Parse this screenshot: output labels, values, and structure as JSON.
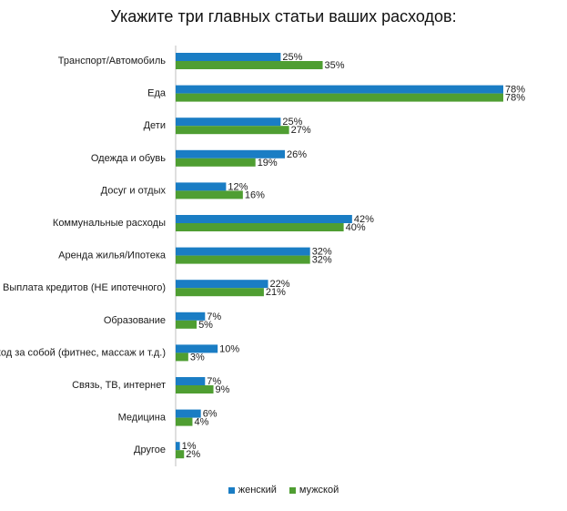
{
  "chart_data": {
    "type": "bar",
    "orientation": "horizontal",
    "title": "Укажите три главных статьи ваших расходов:",
    "categories": [
      "Транспорт/Автомобиль",
      "Еда",
      "Дети",
      "Одежда и обувь",
      "Досуг и отдых",
      "Коммунальные расходы",
      "Аренда жилья/Ипотека",
      "Выплата кредитов (НЕ ипотечного)",
      "Образование",
      "Уход за собой (фитнес, массаж и т.д.)",
      "Связь, ТВ, интернет",
      "Медицина",
      "Другое"
    ],
    "series": [
      {
        "name": "женский",
        "color": "#1a7dc4",
        "values": [
          25,
          78,
          25,
          26,
          12,
          42,
          32,
          22,
          7,
          10,
          7,
          6,
          1
        ]
      },
      {
        "name": "мужской",
        "color": "#4f9e32",
        "values": [
          35,
          78,
          27,
          19,
          16,
          40,
          32,
          21,
          5,
          3,
          9,
          4,
          2
        ]
      }
    ],
    "value_suffix": "%",
    "xlim": [
      0,
      100
    ],
    "grid": false,
    "legend_position": "bottom"
  }
}
